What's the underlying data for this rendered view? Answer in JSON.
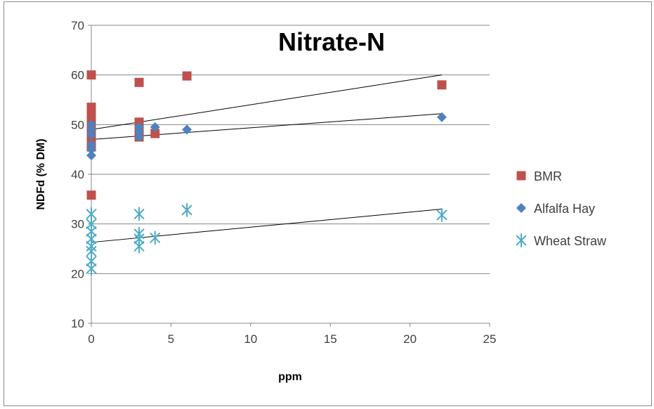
{
  "chart_data": {
    "type": "scatter",
    "title": "Nitrate-N",
    "xlabel": "ppm",
    "ylabel": "NDFd (% DM)",
    "xlim": [
      0,
      25
    ],
    "ylim": [
      10,
      70
    ],
    "xticks": [
      "0",
      "5",
      "10",
      "15",
      "20",
      "25"
    ],
    "yticks": [
      "10",
      "20",
      "30",
      "40",
      "50",
      "60",
      "70"
    ],
    "grid": "horizontal",
    "legend_position": "right",
    "series": [
      {
        "name": "BMR",
        "marker": "square",
        "color": "#c0504d",
        "points": [
          [
            0,
            60
          ],
          [
            0,
            53.5
          ],
          [
            0,
            52
          ],
          [
            0,
            50.5
          ],
          [
            0,
            49.5
          ],
          [
            0,
            48.5
          ],
          [
            0,
            47
          ],
          [
            0,
            45.5
          ],
          [
            0,
            35.8
          ],
          [
            3,
            58.5
          ],
          [
            3,
            50.5
          ],
          [
            3,
            48.5
          ],
          [
            3,
            47.5
          ],
          [
            4,
            48.2
          ],
          [
            6,
            59.8
          ],
          [
            22,
            58
          ]
        ],
        "trendline": [
          [
            0,
            49
          ],
          [
            22,
            60
          ]
        ]
      },
      {
        "name": "Alfalfa Hay",
        "marker": "diamond",
        "color": "#4f81bd",
        "points": [
          [
            0,
            50
          ],
          [
            0,
            49
          ],
          [
            0,
            48
          ],
          [
            0,
            46
          ],
          [
            0,
            45
          ],
          [
            0,
            43.8
          ],
          [
            3,
            49.5
          ],
          [
            3,
            48.5
          ],
          [
            3,
            47.5
          ],
          [
            4,
            49.5
          ],
          [
            6,
            49
          ],
          [
            22,
            51.5
          ]
        ],
        "trendline": [
          [
            0,
            47
          ],
          [
            22,
            52.2
          ]
        ]
      },
      {
        "name": "Wheat Straw",
        "marker": "asterisk",
        "color": "#4bacc6",
        "points": [
          [
            0,
            32
          ],
          [
            0,
            30
          ],
          [
            0,
            28.5
          ],
          [
            0,
            27
          ],
          [
            0,
            25.5
          ],
          [
            0,
            24.5
          ],
          [
            0,
            22.5
          ],
          [
            0,
            21
          ],
          [
            3,
            32
          ],
          [
            3,
            28
          ],
          [
            3,
            27
          ],
          [
            3,
            25.5
          ],
          [
            4,
            27.2
          ],
          [
            6,
            32.8
          ],
          [
            22,
            31.8
          ]
        ],
        "trendline": [
          [
            0,
            26.3
          ],
          [
            22,
            33
          ]
        ]
      }
    ]
  }
}
